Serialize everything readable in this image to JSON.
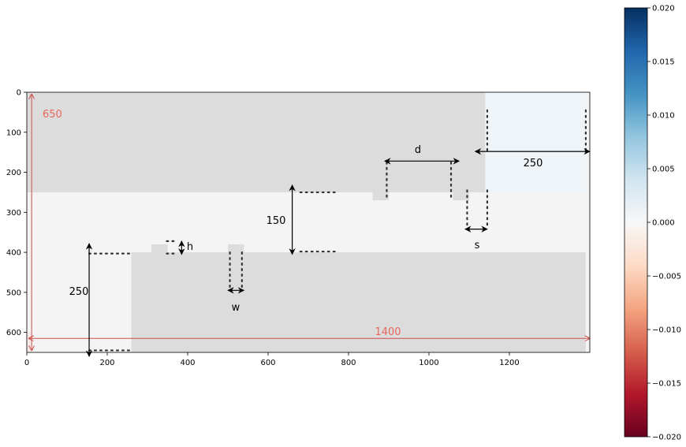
{
  "colors": {
    "dark_region": "#dcdcdc",
    "light_region": "#f4f4f4",
    "pale_blue_region": "#eef4f8",
    "pale_red_region": "#fbeaea",
    "red_annotation": "#c9504b",
    "red_text": "#e8665f"
  },
  "chart_data": [
    {
      "type": "heatmap",
      "description_free": true,
      "xlim": [
        0,
        1400
      ],
      "ylim": [
        650,
        0
      ],
      "x_ticks": [
        "0",
        "200",
        "400",
        "600",
        "800",
        "1000",
        "1200"
      ],
      "y_ticks": [
        "0",
        "100",
        "200",
        "300",
        "400",
        "500",
        "600"
      ],
      "x_tick_values": [
        0,
        200,
        400,
        600,
        800,
        1000,
        1200
      ],
      "y_tick_values": [
        0,
        100,
        200,
        300,
        400,
        500,
        600
      ],
      "regions": [
        {
          "kind": "light",
          "x0": 0,
          "x1": 1400,
          "y0": 0,
          "y1": 650
        },
        {
          "kind": "dark",
          "x0": 0,
          "x1": 1140,
          "y0": 0,
          "y1": 250
        },
        {
          "kind": "pale_blue",
          "x0": 1140,
          "x1": 1390,
          "y0": 0,
          "y1": 250
        },
        {
          "kind": "dark",
          "x0": 860,
          "x1": 900,
          "y0": 250,
          "y1": 270
        },
        {
          "kind": "dark",
          "x0": 1060,
          "x1": 1100,
          "y0": 250,
          "y1": 270
        },
        {
          "kind": "dark",
          "x0": 260,
          "x1": 1390,
          "y0": 400,
          "y1": 650
        },
        {
          "kind": "dark",
          "x0": 310,
          "x1": 350,
          "y0": 380,
          "y1": 400
        },
        {
          "kind": "dark",
          "x0": 500,
          "x1": 540,
          "y0": 380,
          "y1": 400
        },
        {
          "kind": "pale_red",
          "x0": 0,
          "x1": 10,
          "y0": 600,
          "y1": 650
        }
      ],
      "annotations": {
        "red_height": "650",
        "red_width": "1400",
        "dim_250_left": "250",
        "dim_150": "150",
        "dim_250_right": "250",
        "d": "d",
        "s": "s",
        "h": "h",
        "w": "w"
      },
      "dimension_values": {
        "red_height": {
          "x": 12,
          "y0": 5,
          "y1": 645
        },
        "red_width": {
          "y": 615,
          "x0": 5,
          "x1": 1400
        },
        "dim_250_left": {
          "x": 155,
          "y0": 378,
          "y1": 660
        },
        "dim_150": {
          "x": 660,
          "y0": 232,
          "y1": 405
        },
        "dim_250_right": {
          "y": 148,
          "x0": 1115,
          "x1": 1400
        },
        "d": {
          "y": 172,
          "x0": 890,
          "x1": 1075
        },
        "s": {
          "y": 342,
          "x0": 1090,
          "x1": 1145
        },
        "h": {
          "x": 385,
          "y0": 372,
          "y1": 405
        },
        "w": {
          "y": 495,
          "x0": 500,
          "x1": 540
        }
      },
      "dotted_guides": [
        {
          "x0": 155,
          "x1": 255,
          "y0": 403,
          "y1": 403
        },
        {
          "x0": 155,
          "x1": 255,
          "y0": 645,
          "y1": 645
        },
        {
          "x0": 680,
          "x1": 770,
          "y0": 250,
          "y1": 250
        },
        {
          "x0": 680,
          "x1": 770,
          "y0": 398,
          "y1": 398
        },
        {
          "x0": 895,
          "x1": 895,
          "y0": 175,
          "y1": 265
        },
        {
          "x0": 1055,
          "x1": 1055,
          "y0": 175,
          "y1": 265
        },
        {
          "x0": 1095,
          "x1": 1095,
          "y0": 245,
          "y1": 340
        },
        {
          "x0": 1145,
          "x1": 1145,
          "y0": 245,
          "y1": 340
        },
        {
          "x0": 1145,
          "x1": 1145,
          "y0": 45,
          "y1": 145
        },
        {
          "x0": 1390,
          "x1": 1390,
          "y0": 45,
          "y1": 145
        },
        {
          "x0": 348,
          "x1": 372,
          "y0": 372,
          "y1": 372
        },
        {
          "x0": 348,
          "x1": 372,
          "y0": 403,
          "y1": 403
        },
        {
          "x0": 505,
          "x1": 505,
          "y0": 400,
          "y1": 490
        },
        {
          "x0": 535,
          "x1": 535,
          "y0": 400,
          "y1": 490
        }
      ]
    },
    {
      "type": "heatmap",
      "role": "colorbar",
      "colormap": "RdBu",
      "ylim": [
        -0.02,
        0.02
      ],
      "ticks": [
        "0.020",
        "0.015",
        "0.010",
        "0.005",
        "0.000",
        "−0.005",
        "−0.010",
        "−0.015",
        "−0.020"
      ],
      "tick_values": [
        0.02,
        0.015,
        0.01,
        0.005,
        0.0,
        -0.005,
        -0.01,
        -0.015,
        -0.02
      ]
    }
  ]
}
